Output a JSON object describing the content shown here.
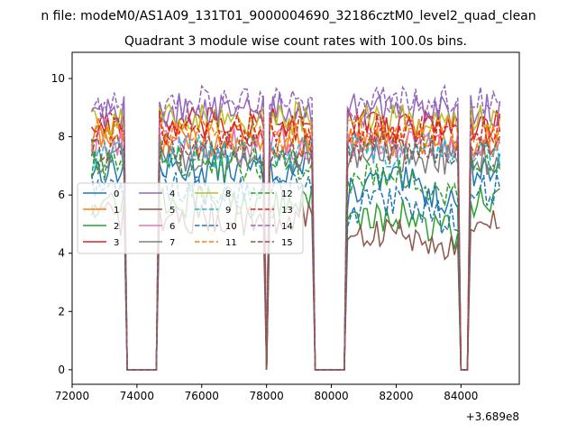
{
  "figure": {
    "suptitle": "n file: modeM0/AS1A09_131T01_9000004690_32186cztM0_level2_quad_clean",
    "offset_label": "+3.689e8"
  },
  "chart_data": {
    "type": "line",
    "title": "Quadrant 3 module wise count rates with 100.0s bins.",
    "xlabel": "",
    "ylabel": "",
    "xlim": [
      72000,
      85800
    ],
    "ylim": [
      -0.5,
      10.9
    ],
    "x_offset": 368900000,
    "x_ticks": [
      72000,
      74000,
      76000,
      78000,
      80000,
      82000,
      84000
    ],
    "x_tick_labels": [
      "72000",
      "74000",
      "76000",
      "78000",
      "80000",
      "82000",
      "84000"
    ],
    "y_ticks": [
      0,
      2,
      4,
      6,
      8,
      10
    ],
    "y_tick_labels": [
      "0",
      "2",
      "4",
      "6",
      "8",
      "10"
    ],
    "grid": false,
    "legend_position": "center-left",
    "legend_columns": 4,
    "segments": [
      {
        "start": 72600,
        "end": 73600
      },
      {
        "start": 74700,
        "end": 77900
      },
      {
        "start": 78100,
        "end": 79400
      },
      {
        "start": 80500,
        "end": 83900
      },
      {
        "start": 84300,
        "end": 85200
      }
    ],
    "series": [
      {
        "name": "0",
        "level": 6.9,
        "color": "#1f77b4",
        "dash": "solid"
      },
      {
        "name": "1",
        "level": 7.9,
        "color": "#ff7f0e",
        "dash": "solid"
      },
      {
        "name": "2",
        "level": 5.8,
        "color": "#2ca02c",
        "dash": "solid"
      },
      {
        "name": "3",
        "level": 8.4,
        "color": "#d62728",
        "dash": "solid"
      },
      {
        "name": "4",
        "level": 8.9,
        "color": "#9467bd",
        "dash": "solid"
      },
      {
        "name": "5",
        "level": 5.2,
        "color": "#8c564b",
        "dash": "solid"
      },
      {
        "name": "6",
        "level": 7.7,
        "color": "#e377c2",
        "dash": "solid"
      },
      {
        "name": "7",
        "level": 7.3,
        "color": "#7f7f7f",
        "dash": "solid"
      },
      {
        "name": "8",
        "level": 8.6,
        "color": "#bcbd22",
        "dash": "solid"
      },
      {
        "name": "9",
        "level": 7.5,
        "color": "#17becf",
        "dash": "dashed"
      },
      {
        "name": "10",
        "level": 6.2,
        "color": "#1f77b4",
        "dash": "dashed"
      },
      {
        "name": "11",
        "level": 8.1,
        "color": "#ff7f0e",
        "dash": "dashed"
      },
      {
        "name": "12",
        "level": 7.1,
        "color": "#2ca02c",
        "dash": "dashed"
      },
      {
        "name": "13",
        "level": 8.3,
        "color": "#d62728",
        "dash": "dashed"
      },
      {
        "name": "14",
        "level": 9.2,
        "color": "#9467bd",
        "dash": "dashed"
      },
      {
        "name": "15",
        "level": 7.6,
        "color": "#8c564b",
        "dash": "dashed"
      }
    ]
  }
}
